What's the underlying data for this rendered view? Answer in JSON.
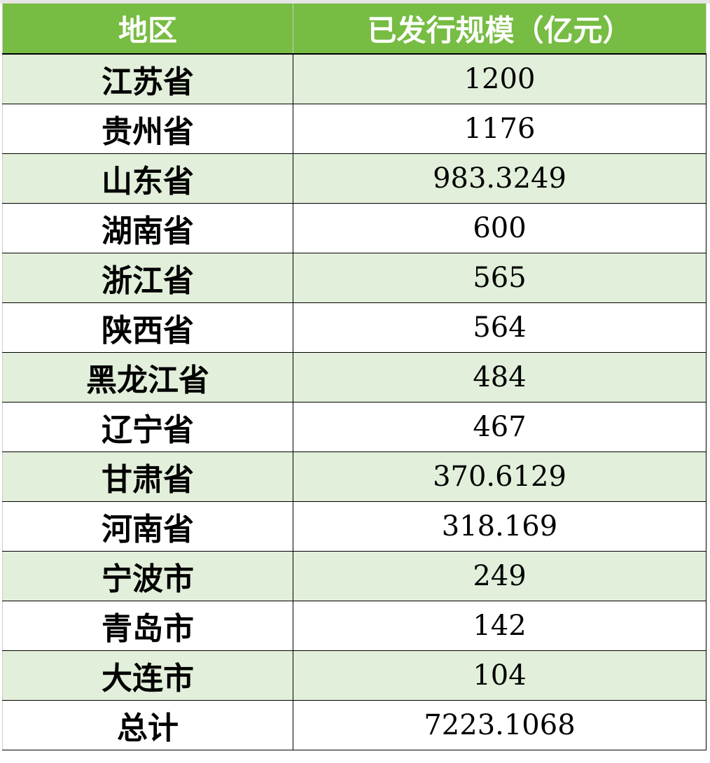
{
  "chart_data": {
    "type": "table",
    "columns": [
      "地区",
      "已发行规模（亿元）"
    ],
    "rows": [
      [
        "江苏省",
        "1200"
      ],
      [
        "贵州省",
        "1176"
      ],
      [
        "山东省",
        "983.3249"
      ],
      [
        "湖南省",
        "600"
      ],
      [
        "浙江省",
        "565"
      ],
      [
        "陕西省",
        "564"
      ],
      [
        "黑龙江省",
        "484"
      ],
      [
        "辽宁省",
        "467"
      ],
      [
        "甘肃省",
        "370.6129"
      ],
      [
        "河南省",
        "318.169"
      ],
      [
        "宁波市",
        "249"
      ],
      [
        "青岛市",
        "142"
      ],
      [
        "大连市",
        "104"
      ],
      [
        "总计",
        "7223.1068"
      ]
    ],
    "colors": {
      "header": "#77bc43",
      "band": "#e2efda",
      "header_text": "#ffffff"
    }
  }
}
